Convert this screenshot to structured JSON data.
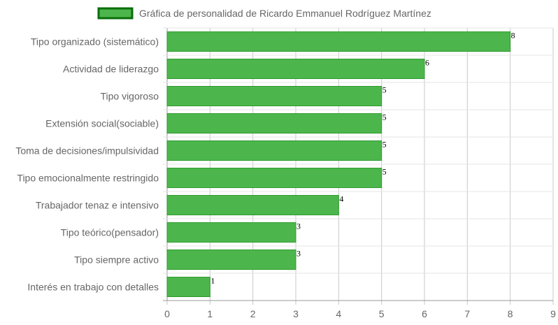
{
  "chart_data": {
    "type": "bar",
    "orientation": "horizontal",
    "legend": {
      "label": "Gráfica de personalidad de Ricardo Emmanuel Rodríguez Martínez",
      "position": "top"
    },
    "categories": [
      "Tipo organizado (sistemático)",
      "Actividad de liderazgo",
      "Tipo vigoroso",
      "Extensión social(sociable)",
      "Toma de decisiones/impulsividad",
      "Tipo emocionalmente restringido",
      "Trabajador tenaz e intensivo",
      "Tipo teórico(pensador)",
      "Tipo siempre activo",
      "Interés en trabajo con detalles"
    ],
    "values": [
      8,
      6,
      5,
      5,
      5,
      5,
      4,
      3,
      3,
      1
    ],
    "value_labels": [
      "8",
      "6",
      "5",
      "5",
      "5",
      "5",
      "4",
      "3",
      "3",
      "1"
    ],
    "xlim": [
      0,
      9
    ],
    "x_ticks": [
      "0",
      "1",
      "2",
      "3",
      "4",
      "5",
      "6",
      "7",
      "8",
      "9"
    ],
    "grid": true,
    "colors": {
      "bar_fill": "#4cb64c",
      "bar_border": "#2e9a2e",
      "legend_border": "#0a6e0a"
    }
  }
}
